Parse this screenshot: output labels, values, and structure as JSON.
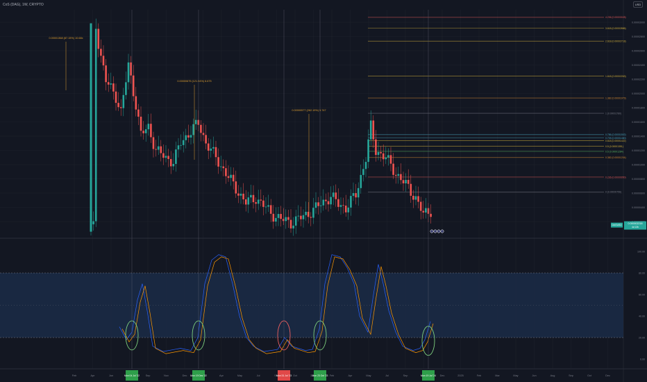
{
  "header": {
    "symbol_title": "CoS (DAG), 1W, CRYPTO",
    "currency_button": "USD"
  },
  "colors": {
    "bg": "#131722",
    "up": "#26a69a",
    "down": "#ef5350",
    "grid": "#1e222d",
    "fib": "#d4b13b",
    "k_line": "#2962ff",
    "d_line": "#ff9800",
    "band": "#1b2a45",
    "circle": "#7ed07e",
    "circle_red": "#f06060"
  },
  "price_axis": {
    "ticks": [
      "0.00003000",
      "0.00002800",
      "0.00002600",
      "0.00002400",
      "0.00002200",
      "0.00002000",
      "0.00001800",
      "0.00001600",
      "0.00001400",
      "0.00001200",
      "0.00001000",
      "0.00000800",
      "0.00000600",
      "0.00000400",
      "0.00000200"
    ],
    "last_price_label": "0.000002218",
    "last_price_sub": "4d 13h",
    "symbol_tag": "DAGUSD"
  },
  "osc_axis": {
    "ticks": [
      "100.00",
      "80.00",
      "60.00",
      "40.00",
      "20.00",
      "0.00"
    ]
  },
  "time_axis": {
    "ticks": [
      "Feb",
      "Apr",
      "Jun",
      "Aug",
      "Sep",
      "Nov",
      "Dec",
      "Feb",
      "Apr",
      "May",
      "Jul",
      "Sep",
      "Oct",
      "2024",
      "Feb",
      "Apr",
      "May",
      "Jul",
      "Sep",
      "Oct",
      "Dec",
      "2025",
      "Feb",
      "Mar",
      "May",
      "Jun",
      "Aug",
      "Sep",
      "Oct",
      "Dec"
    ],
    "date_badges": [
      {
        "label": "Mon 04 Jul '22",
        "kind": "green"
      },
      {
        "label": "Mon 19 Dec '22",
        "kind": "green"
      },
      {
        "label": "Mon 31 Jul '23",
        "kind": "red"
      },
      {
        "label": "Mon 23 Oct '23",
        "kind": "green"
      },
      {
        "label": "Mon 19 Jul '24",
        "kind": "green"
      }
    ]
  },
  "measure_labels": [
    "0.00001368 (87.15%) 10.68x",
    "0.00000675 (121.94%) 6.675",
    "0.00000577 (262.19%) 5.747"
  ],
  "fib_levels": [
    {
      "label": "4.236 (0.00003028)",
      "kind": "red"
    },
    {
      "label": "3.618 (0.00002886)",
      "kind": "yellow"
    },
    {
      "label": "2.618 (0.00002718)",
      "kind": "yellow"
    },
    {
      "label": "1.618 (0.00002263)",
      "kind": "yellow"
    },
    {
      "label": "1.382 (0.00001979)",
      "kind": "orange"
    },
    {
      "label": "1 (0.00001780)",
      "kind": "gray"
    },
    {
      "label": "0.786 (0.00001502)",
      "kind": "teal"
    },
    {
      "label": "0.705 (0.00001460)",
      "kind": "teal"
    },
    {
      "label": "0.618 (0.00001422)",
      "kind": "yellow"
    },
    {
      "label": "0.5 (0.00001351)",
      "kind": "yellow"
    },
    {
      "label": "0.5 (0.00001284)",
      "kind": "green"
    },
    {
      "label": "0.382 (0.00001204)",
      "kind": "orange"
    },
    {
      "label": "0.236 (0.00000950)",
      "kind": "red"
    },
    {
      "label": "0 (0.00000756)",
      "kind": "gray"
    }
  ],
  "chart_data": {
    "type": "candlestick_with_stochastic",
    "price_ylim": [
      2e-06,
      3e-05
    ],
    "osc_ylim": [
      0,
      100
    ],
    "osc_levels": [
      80,
      20
    ],
    "fib_values": [
      3.028e-05,
      2.886e-05,
      2.718e-05,
      2.263e-05,
      1.979e-05,
      1.78e-05,
      1.502e-05,
      1.46e-05,
      1.422e-05,
      1.351e-05,
      1.284e-05,
      1.204e-05,
      9.5e-06,
      7.56e-06
    ],
    "circles_at_osc": [
      22,
      22,
      22,
      22,
      17
    ]
  }
}
